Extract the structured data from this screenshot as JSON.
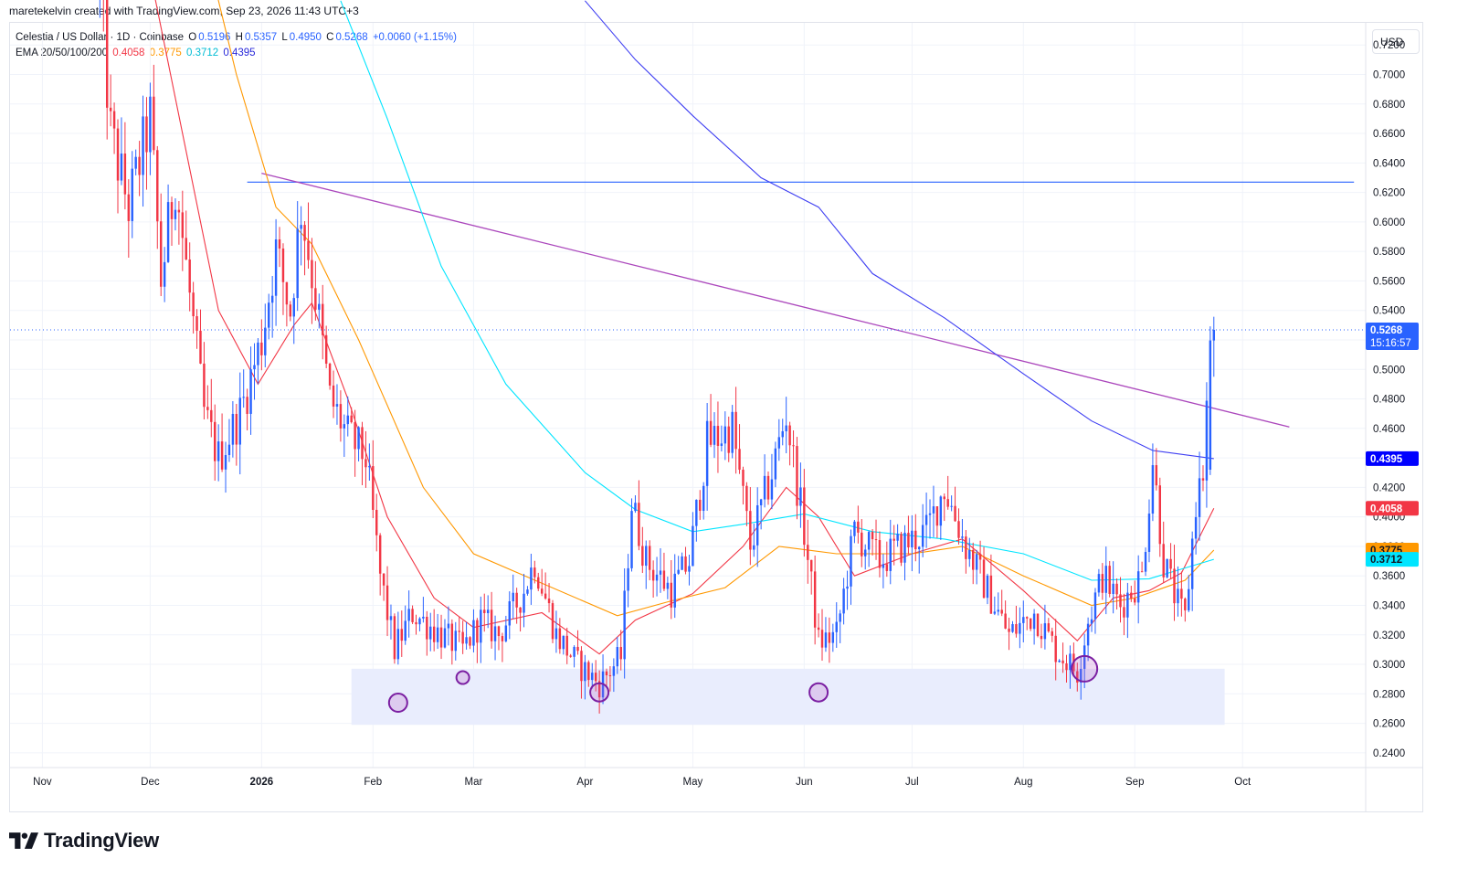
{
  "header": {
    "author_line": "maretekelvin created with TradingView.com, Sep 23, 2026 11:43 UTC+3"
  },
  "legend": {
    "symbol": "Celestia / US Dollar · 1D · Coinbase",
    "open_label": "O",
    "open": "0.5196",
    "high_label": "H",
    "high": "0.5357",
    "low_label": "L",
    "low": "0.4950",
    "close_label": "C",
    "close": "0.5268",
    "change": "+0.0060 (+1.15%)",
    "ema_label": "EMA 20/50/100/200",
    "ema20": "0.4058",
    "ema50": "0.3775",
    "ema100": "0.3712",
    "ema200": "0.4395"
  },
  "toolbar": {
    "currency": "USD"
  },
  "brand": {
    "name": "TradingView"
  },
  "colors": {
    "up": "#2962ff",
    "down": "#f23645",
    "ema20": "#f23645",
    "ema50": "#ff9800",
    "ema100": "#00e5ff",
    "ema200": "#3d3df2",
    "trendline": "#ab47bc",
    "resistance": "#2962ff",
    "support_zone": "#e8ecfd"
  },
  "chart_data": {
    "type": "candlestick",
    "title": "Celestia / US Dollar · 1D · Coinbase",
    "ylim": [
      0.23,
      0.735
    ],
    "yticks": [
      "0.7200",
      "0.7000",
      "0.6800",
      "0.6600",
      "0.6400",
      "0.6200",
      "0.6000",
      "0.5800",
      "0.5600",
      "0.5400",
      "0.5200",
      "0.5000",
      "0.4800",
      "0.4600",
      "0.4400",
      "0.4200",
      "0.4000",
      "0.3800",
      "0.3600",
      "0.3400",
      "0.3200",
      "0.3000",
      "0.2800",
      "0.2600",
      "0.2400"
    ],
    "xticks": [
      {
        "label": "Nov",
        "date": "2025-11-01",
        "bold": false
      },
      {
        "label": "Dec",
        "date": "2025-12-01",
        "bold": false
      },
      {
        "label": "2026",
        "date": "2026-01-01",
        "bold": true
      },
      {
        "label": "Feb",
        "date": "2026-02-01",
        "bold": false
      },
      {
        "label": "Mar",
        "date": "2026-03-01",
        "bold": false
      },
      {
        "label": "Apr",
        "date": "2026-04-01",
        "bold": false
      },
      {
        "label": "May",
        "date": "2026-05-01",
        "bold": false
      },
      {
        "label": "Jun",
        "date": "2026-06-01",
        "bold": false
      },
      {
        "label": "Jul",
        "date": "2026-07-01",
        "bold": false
      },
      {
        "label": "Aug",
        "date": "2026-08-01",
        "bold": false
      },
      {
        "label": "Sep",
        "date": "2026-09-01",
        "bold": false
      },
      {
        "label": "Oct",
        "date": "2026-10-01",
        "bold": false
      }
    ],
    "xrange": [
      "2025-10-23",
      "2026-11-04"
    ],
    "price_anchors": [
      [
        "2025-11-17",
        0.76
      ],
      [
        "2025-11-20",
        0.66
      ],
      [
        "2025-11-25",
        0.61
      ],
      [
        "2025-12-01",
        0.67
      ],
      [
        "2025-12-04",
        0.56
      ],
      [
        "2025-12-08",
        0.63
      ],
      [
        "2025-12-12",
        0.55
      ],
      [
        "2025-12-16",
        0.47
      ],
      [
        "2025-12-20",
        0.44
      ],
      [
        "2025-12-26",
        0.47
      ],
      [
        "2026-01-01",
        0.52
      ],
      [
        "2026-01-05",
        0.58
      ],
      [
        "2026-01-09",
        0.54
      ],
      [
        "2026-01-12",
        0.61
      ],
      [
        "2026-01-16",
        0.55
      ],
      [
        "2026-01-20",
        0.48
      ],
      [
        "2026-01-25",
        0.455
      ],
      [
        "2026-01-30",
        0.44
      ],
      [
        "2026-02-03",
        0.36
      ],
      [
        "2026-02-07",
        0.31
      ],
      [
        "2026-02-12",
        0.335
      ],
      [
        "2026-02-20",
        0.32
      ],
      [
        "2026-02-26",
        0.31
      ],
      [
        "2026-03-03",
        0.33
      ],
      [
        "2026-03-08",
        0.32
      ],
      [
        "2026-03-15",
        0.35
      ],
      [
        "2026-03-18",
        0.37
      ],
      [
        "2026-03-24",
        0.32
      ],
      [
        "2026-03-30",
        0.3
      ],
      [
        "2026-04-05",
        0.287
      ],
      [
        "2026-04-11",
        0.305
      ],
      [
        "2026-04-14",
        0.41
      ],
      [
        "2026-04-18",
        0.37
      ],
      [
        "2026-04-25",
        0.35
      ],
      [
        "2026-04-30",
        0.37
      ],
      [
        "2026-05-05",
        0.45
      ],
      [
        "2026-05-12",
        0.46
      ],
      [
        "2026-05-17",
        0.38
      ],
      [
        "2026-05-23",
        0.43
      ],
      [
        "2026-05-27",
        0.47
      ],
      [
        "2026-06-01",
        0.39
      ],
      [
        "2026-06-05",
        0.315
      ],
      [
        "2026-06-10",
        0.32
      ],
      [
        "2026-06-15",
        0.39
      ],
      [
        "2026-06-22",
        0.37
      ],
      [
        "2026-06-28",
        0.38
      ],
      [
        "2026-07-05",
        0.39
      ],
      [
        "2026-07-10",
        0.42
      ],
      [
        "2026-07-16",
        0.38
      ],
      [
        "2026-07-22",
        0.35
      ],
      [
        "2026-07-28",
        0.32
      ],
      [
        "2026-08-04",
        0.335
      ],
      [
        "2026-08-10",
        0.31
      ],
      [
        "2026-08-16",
        0.295
      ],
      [
        "2026-08-19",
        0.33
      ],
      [
        "2026-08-23",
        0.36
      ],
      [
        "2026-08-28",
        0.34
      ],
      [
        "2026-09-03",
        0.36
      ],
      [
        "2026-09-06",
        0.44
      ],
      [
        "2026-09-09",
        0.37
      ],
      [
        "2026-09-13",
        0.34
      ],
      [
        "2026-09-15",
        0.33
      ],
      [
        "2026-09-18",
        0.41
      ],
      [
        "2026-09-20",
        0.43
      ],
      [
        "2026-09-22",
        0.5196
      ],
      [
        "2026-09-23",
        0.5268
      ]
    ],
    "ema": [
      {
        "name": "EMA 20",
        "color": "#f23645",
        "points": [
          [
            "2025-11-30",
            0.78
          ],
          [
            "2025-12-10",
            0.66
          ],
          [
            "2025-12-20",
            0.54
          ],
          [
            "2025-12-31",
            0.49
          ],
          [
            "2026-01-10",
            0.53
          ],
          [
            "2026-01-15",
            0.545
          ],
          [
            "2026-01-25",
            0.48
          ],
          [
            "2026-02-05",
            0.4
          ],
          [
            "2026-02-18",
            0.345
          ],
          [
            "2026-03-01",
            0.325
          ],
          [
            "2026-03-20",
            0.335
          ],
          [
            "2026-04-05",
            0.307
          ],
          [
            "2026-04-15",
            0.33
          ],
          [
            "2026-05-01",
            0.348
          ],
          [
            "2026-05-15",
            0.38
          ],
          [
            "2026-05-27",
            0.42
          ],
          [
            "2026-06-05",
            0.4
          ],
          [
            "2026-06-15",
            0.36
          ],
          [
            "2026-07-01",
            0.375
          ],
          [
            "2026-07-15",
            0.385
          ],
          [
            "2026-08-01",
            0.35
          ],
          [
            "2026-08-16",
            0.316
          ],
          [
            "2026-08-26",
            0.345
          ],
          [
            "2026-09-05",
            0.35
          ],
          [
            "2026-09-14",
            0.362
          ],
          [
            "2026-09-23",
            0.4058
          ]
        ]
      },
      {
        "name": "EMA 50",
        "color": "#ff9800",
        "points": [
          [
            "2025-12-17",
            0.78
          ],
          [
            "2025-12-25",
            0.7
          ],
          [
            "2026-01-05",
            0.61
          ],
          [
            "2026-01-15",
            0.585
          ],
          [
            "2026-01-28",
            0.52
          ],
          [
            "2026-02-15",
            0.42
          ],
          [
            "2026-03-01",
            0.375
          ],
          [
            "2026-03-20",
            0.355
          ],
          [
            "2026-04-10",
            0.333
          ],
          [
            "2026-04-25",
            0.343
          ],
          [
            "2026-05-10",
            0.352
          ],
          [
            "2026-05-25",
            0.38
          ],
          [
            "2026-06-10",
            0.375
          ],
          [
            "2026-07-01",
            0.375
          ],
          [
            "2026-07-15",
            0.38
          ],
          [
            "2026-08-01",
            0.36
          ],
          [
            "2026-08-20",
            0.34
          ],
          [
            "2026-09-01",
            0.345
          ],
          [
            "2026-09-15",
            0.357
          ],
          [
            "2026-09-23",
            0.3775
          ]
        ]
      },
      {
        "name": "EMA 100",
        "color": "#00e5ff",
        "points": [
          [
            "2026-01-23",
            0.75
          ],
          [
            "2026-02-05",
            0.67
          ],
          [
            "2026-02-20",
            0.57
          ],
          [
            "2026-03-10",
            0.49
          ],
          [
            "2026-04-01",
            0.43
          ],
          [
            "2026-04-15",
            0.405
          ],
          [
            "2026-05-01",
            0.39
          ],
          [
            "2026-05-15",
            0.395
          ],
          [
            "2026-06-01",
            0.402
          ],
          [
            "2026-06-20",
            0.39
          ],
          [
            "2026-07-10",
            0.385
          ],
          [
            "2026-08-01",
            0.375
          ],
          [
            "2026-08-20",
            0.357
          ],
          [
            "2026-09-05",
            0.358
          ],
          [
            "2026-09-23",
            0.3712
          ]
        ]
      },
      {
        "name": "EMA 200",
        "color": "#3d3df2",
        "points": [
          [
            "2026-04-01",
            0.75
          ],
          [
            "2026-04-15",
            0.71
          ],
          [
            "2026-05-01",
            0.672
          ],
          [
            "2026-05-20",
            0.63
          ],
          [
            "2026-06-05",
            0.61
          ],
          [
            "2026-06-20",
            0.565
          ],
          [
            "2026-07-10",
            0.535
          ],
          [
            "2026-08-01",
            0.497
          ],
          [
            "2026-08-20",
            0.465
          ],
          [
            "2026-09-06",
            0.445
          ],
          [
            "2026-09-23",
            0.4395
          ]
        ]
      }
    ],
    "trendline": {
      "from": [
        "2026-01-01",
        0.633
      ],
      "to": [
        "2026-10-14",
        0.461
      ]
    },
    "resistance": {
      "from": [
        "2025-12-28",
        0.627
      ],
      "to": [
        "2026-11-01",
        0.627
      ]
    },
    "support_zone": {
      "from": "2026-01-26",
      "to": "2026-09-26",
      "ymin": 0.259,
      "ymax": 0.297
    },
    "highlighted_lows": [
      {
        "date": "2026-02-08",
        "price": 0.274,
        "size": "small"
      },
      {
        "date": "2026-02-26",
        "price": 0.291,
        "size": "small"
      },
      {
        "date": "2026-04-05",
        "price": 0.281,
        "size": "small"
      },
      {
        "date": "2026-06-05",
        "price": 0.281,
        "size": "small"
      },
      {
        "date": "2026-08-18",
        "price": 0.297,
        "size": "large"
      }
    ],
    "last_price": {
      "value": "0.5268",
      "countdown": "15:16:57"
    },
    "price_tags": [
      {
        "value": "0.4395",
        "color": "#0000ff",
        "text_color": "#ffffff"
      },
      {
        "value": "0.4058",
        "color": "#f23645",
        "text_color": "#ffffff"
      },
      {
        "value": "0.3775",
        "color": "#ff9800",
        "text_color": "#131722"
      },
      {
        "value": "0.3712",
        "color": "#00e5ff",
        "text_color": "#131722"
      }
    ]
  }
}
